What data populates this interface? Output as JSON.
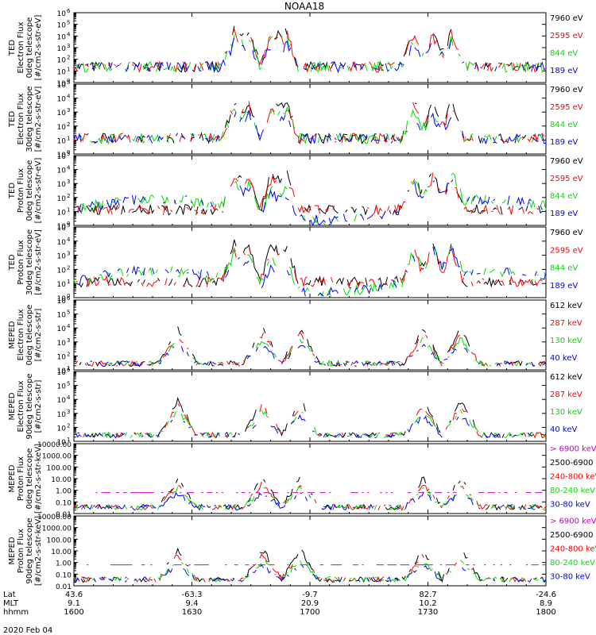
{
  "title": "NOAA18",
  "date_label": "2020 Feb 04",
  "colors": {
    "black": "#000000",
    "red": "#ff0000",
    "green": "#00dd00",
    "blue": "#0000ff",
    "magenta": "#cc00cc"
  },
  "chart_data": [
    {
      "type": "line",
      "ylabel": [
        "TED",
        "Electron Flux",
        "0deg telescope",
        "[#/cm2-s-str-eV]"
      ],
      "log_scale": true,
      "ylim": [
        1,
        1000000
      ],
      "yticks": [
        {
          "value": 1,
          "label": "10"
        },
        {
          "value": 10,
          "label": "10"
        },
        {
          "value": 100,
          "label": "10"
        },
        {
          "value": 1000,
          "label": "10"
        },
        {
          "value": 10000,
          "label": "10"
        },
        {
          "value": 100000,
          "label": "10"
        },
        {
          "value": 1000000,
          "label": "10"
        }
      ],
      "ytick_exponents": [
        "0",
        "1",
        "2",
        "3",
        "4",
        "5",
        "6"
      ],
      "series": [
        {
          "name": "7960 eV",
          "color": "#000000"
        },
        {
          "name": "2595 eV",
          "color": "#ff0000"
        },
        {
          "name": "844 eV",
          "color": "#00dd00"
        },
        {
          "name": "189 eV",
          "color": "#0000ff"
        }
      ]
    },
    {
      "type": "line",
      "ylabel": [
        "TED",
        "Electron Flux",
        "30deg telescope",
        "[#/cm2-s-str-eV]"
      ],
      "log_scale": true,
      "ylim": [
        1,
        100000
      ],
      "yticks": [
        {
          "value": 1,
          "label": "10"
        },
        {
          "value": 10,
          "label": "10"
        },
        {
          "value": 100,
          "label": "10"
        },
        {
          "value": 1000,
          "label": "10"
        },
        {
          "value": 10000,
          "label": "10"
        },
        {
          "value": 100000,
          "label": "10"
        }
      ],
      "ytick_exponents": [
        "0",
        "1",
        "2",
        "3",
        "4",
        "5"
      ],
      "series": [
        {
          "name": "7960 eV",
          "color": "#000000"
        },
        {
          "name": "2595 eV",
          "color": "#ff0000"
        },
        {
          "name": "844 eV",
          "color": "#00dd00"
        },
        {
          "name": "189 eV",
          "color": "#0000ff"
        }
      ]
    },
    {
      "type": "line",
      "ylabel": [
        "TED",
        "Proton Flux",
        "0deg telescope",
        "[#/cm2-s-str-eV]"
      ],
      "log_scale": true,
      "ylim": [
        1,
        100000
      ],
      "yticks": [
        {
          "value": 1,
          "label": "10"
        },
        {
          "value": 10,
          "label": "10"
        },
        {
          "value": 100,
          "label": "10"
        },
        {
          "value": 1000,
          "label": "10"
        },
        {
          "value": 10000,
          "label": "10"
        },
        {
          "value": 100000,
          "label": "10"
        }
      ],
      "ytick_exponents": [
        "0",
        "1",
        "2",
        "3",
        "4",
        "5"
      ],
      "series": [
        {
          "name": "7960 eV",
          "color": "#000000"
        },
        {
          "name": "2595 eV",
          "color": "#ff0000"
        },
        {
          "name": "844 eV",
          "color": "#00dd00"
        },
        {
          "name": "189 eV",
          "color": "#0000ff"
        }
      ]
    },
    {
      "type": "line",
      "ylabel": [
        "TED",
        "Proton Flux",
        "30deg telescope",
        "[#/cm2-s-str-eV]"
      ],
      "log_scale": true,
      "ylim": [
        1,
        100000
      ],
      "yticks": [
        {
          "value": 1,
          "label": "10"
        },
        {
          "value": 10,
          "label": "10"
        },
        {
          "value": 100,
          "label": "10"
        },
        {
          "value": 1000,
          "label": "10"
        },
        {
          "value": 10000,
          "label": "10"
        },
        {
          "value": 100000,
          "label": "10"
        }
      ],
      "ytick_exponents": [
        "0",
        "1",
        "2",
        "3",
        "4",
        "5"
      ],
      "series": [
        {
          "name": "7960 eV",
          "color": "#000000"
        },
        {
          "name": "2595 eV",
          "color": "#ff0000"
        },
        {
          "name": "844 eV",
          "color": "#00dd00"
        },
        {
          "name": "189 eV",
          "color": "#0000ff"
        }
      ]
    },
    {
      "type": "line",
      "ylabel": [
        "MEPED",
        "Electron Flux",
        "0deg telescope",
        "[#/cm2-s-str]"
      ],
      "log_scale": true,
      "ylim": [
        10,
        1000000
      ],
      "yticks": [
        {
          "value": 10,
          "label": "10"
        },
        {
          "value": 100,
          "label": "10"
        },
        {
          "value": 1000,
          "label": "10"
        },
        {
          "value": 10000,
          "label": "10"
        },
        {
          "value": 100000,
          "label": "10"
        },
        {
          "value": 1000000,
          "label": "10"
        }
      ],
      "ytick_exponents": [
        "1",
        "2",
        "3",
        "4",
        "5",
        "6"
      ],
      "series": [
        {
          "name": "612 keV",
          "color": "#000000"
        },
        {
          "name": "287 keV",
          "color": "#ff0000"
        },
        {
          "name": "130 keV",
          "color": "#00dd00"
        },
        {
          "name": "40 keV",
          "color": "#0000ff"
        }
      ]
    },
    {
      "type": "line",
      "ylabel": [
        "MEPED",
        "Electron Flux",
        "90deg telescope",
        "[#/cm2-s-str]"
      ],
      "log_scale": true,
      "ylim": [
        10,
        1000000
      ],
      "yticks": [
        {
          "value": 10,
          "label": "10"
        },
        {
          "value": 100,
          "label": "10"
        },
        {
          "value": 1000,
          "label": "10"
        },
        {
          "value": 10000,
          "label": "10"
        },
        {
          "value": 100000,
          "label": "10"
        },
        {
          "value": 1000000,
          "label": "10"
        }
      ],
      "ytick_exponents": [
        "1",
        "2",
        "3",
        "4",
        "5",
        "6"
      ],
      "series": [
        {
          "name": "612 keV",
          "color": "#000000"
        },
        {
          "name": "287 keV",
          "color": "#ff0000"
        },
        {
          "name": "130 keV",
          "color": "#00dd00"
        },
        {
          "name": "40 keV",
          "color": "#0000ff"
        }
      ]
    },
    {
      "type": "line",
      "ylabel": [
        "MEPED",
        "Proton Flux",
        "0deg telescope",
        "[#/cm2-s-str-keV]"
      ],
      "log_scale": true,
      "ylim": [
        0.01,
        10000
      ],
      "yticks": [
        {
          "value": 0.01,
          "label": "0.01"
        },
        {
          "value": 0.1,
          "label": "0.10"
        },
        {
          "value": 1,
          "label": "1.00"
        },
        {
          "value": 10,
          "label": "10.00"
        },
        {
          "value": 100,
          "label": "100.00"
        },
        {
          "value": 1000,
          "label": "1000.00"
        },
        {
          "value": 10000,
          "label": "10000.00"
        }
      ],
      "series": [
        {
          "name": "> 6900 keV",
          "color": "#cc00cc"
        },
        {
          "name": "2500-6900",
          "color": "#000000"
        },
        {
          "name": "240-800 keV",
          "color": "#ff0000"
        },
        {
          "name": "80-240 keV",
          "color": "#00dd00"
        },
        {
          "name": "30-80 keV",
          "color": "#0000ff"
        }
      ]
    },
    {
      "type": "line",
      "ylabel": [
        "MEPED",
        "Proton Flux",
        "90deg telescope",
        "[#/cm2-s-str-keV]"
      ],
      "log_scale": true,
      "ylim": [
        0.01,
        10000
      ],
      "yticks": [
        {
          "value": 0.01,
          "label": "0.01"
        },
        {
          "value": 0.1,
          "label": "0.10"
        },
        {
          "value": 1,
          "label": "1.00"
        },
        {
          "value": 10,
          "label": "10.00"
        },
        {
          "value": 100,
          "label": "100.00"
        },
        {
          "value": 1000,
          "label": "1000.00"
        },
        {
          "value": 10000,
          "label": "10000.00"
        }
      ],
      "series": [
        {
          "name": "> 6900 keV",
          "color": "#cc00cc"
        },
        {
          "name": "2500-6900",
          "color": "#000000"
        },
        {
          "name": "240-800 keV",
          "color": "#ff0000"
        },
        {
          "name": "80-240 keV",
          "color": "#00dd00"
        },
        {
          "name": "30-80 keV",
          "color": "#0000ff"
        }
      ]
    }
  ],
  "x_axis": {
    "row_labels": [
      "Lat",
      "MLT",
      "hhmm"
    ],
    "ticks": [
      {
        "hhmm": "1600",
        "lat": "43.6",
        "mlt": "9.1"
      },
      {
        "hhmm": "1630",
        "lat": "-63.3",
        "mlt": "9.4"
      },
      {
        "hhmm": "1700",
        "lat": "-9.7",
        "mlt": "20.9"
      },
      {
        "hhmm": "1730",
        "lat": "82.7",
        "mlt": "10.2"
      },
      {
        "hhmm": "1800",
        "lat": "-24.6",
        "mlt": "8.9"
      }
    ]
  }
}
